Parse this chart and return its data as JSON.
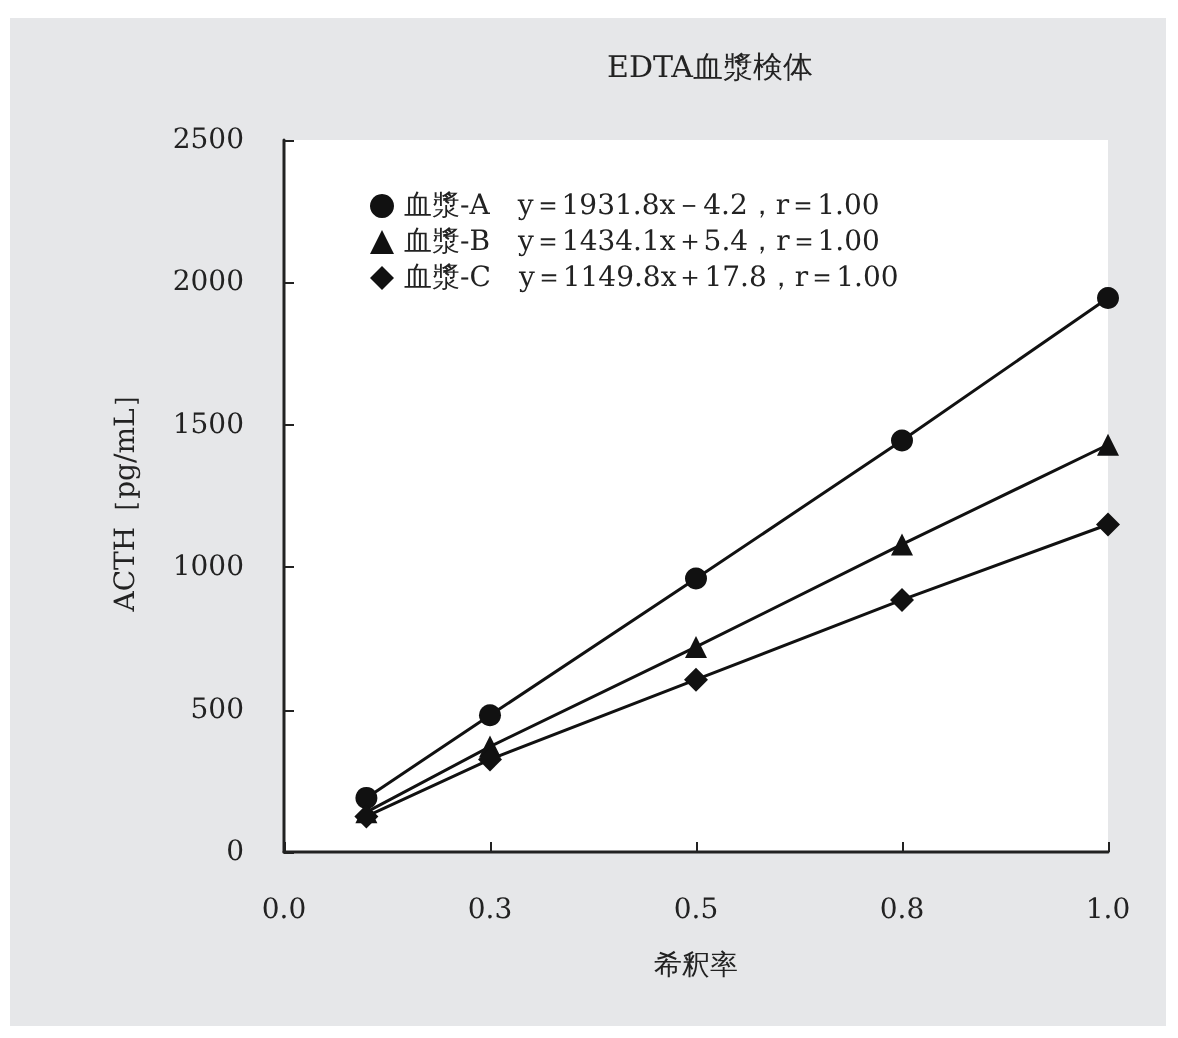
{
  "chart_data": {
    "type": "line",
    "title": "EDTA血漿検体",
    "xlabel": "希釈率",
    "ylabel": "ACTH［pg/mL］",
    "x": [
      0.1,
      0.25,
      0.5,
      0.75,
      1.0
    ],
    "series": [
      {
        "name": "血漿-A　y＝1931.8x－4.2，r＝1.00",
        "color": "#111111",
        "marker": "circle",
        "values": [
          190,
          480,
          960,
          1445,
          1945
        ]
      },
      {
        "name": "血漿-B　y＝1434.1x＋5.4，r＝1.00",
        "color": "#111111",
        "marker": "triangle",
        "values": [
          140,
          370,
          720,
          1080,
          1430
        ]
      },
      {
        "name": "血漿-C　y＝1149.8x＋17.8，r＝1.00",
        "color": "#111111",
        "marker": "diamond",
        "values": [
          125,
          325,
          605,
          885,
          1150
        ]
      }
    ],
    "xlim": [
      0,
      1
    ],
    "xticks": [
      {
        "value": 0,
        "label": "0.0"
      },
      {
        "value": 0.25,
        "label": "0.3"
      },
      {
        "value": 0.5,
        "label": "0.5"
      },
      {
        "value": 0.75,
        "label": "0.8"
      },
      {
        "value": 1,
        "label": "1.0"
      }
    ],
    "ylim": [
      0,
      2500
    ],
    "yticks": [
      0,
      500,
      1000,
      1500,
      2000,
      2500
    ],
    "grid": false,
    "legend": "top left",
    "line_style": "solid"
  }
}
